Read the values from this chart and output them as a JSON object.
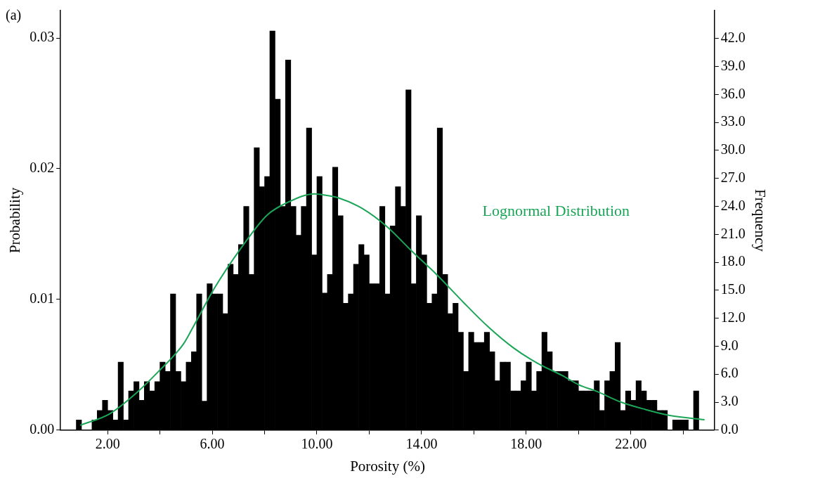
{
  "chart_data": {
    "type": "histogram",
    "xlabel": "Porosity (%)",
    "ylabel": "Probability",
    "y2label": "Frequency",
    "annotations": [
      "(a)"
    ],
    "xlim": [
      0.2,
      25.2
    ],
    "xticks": [
      {
        "value": 2,
        "label": "2.00"
      },
      {
        "value": 4,
        "label": null
      },
      {
        "value": 6,
        "label": "6.00"
      },
      {
        "value": 8,
        "label": null
      },
      {
        "value": 10,
        "label": "10.00"
      },
      {
        "value": 12,
        "label": null
      },
      {
        "value": 14,
        "label": "14.00"
      },
      {
        "value": 16,
        "label": null
      },
      {
        "value": 18,
        "label": "18.00"
      },
      {
        "value": 20,
        "label": null
      },
      {
        "value": 22,
        "label": "22.00"
      },
      {
        "value": 24,
        "label": null
      }
    ],
    "ylim": [
      0,
      0.0321
    ],
    "yticks": [
      {
        "value": 0,
        "label": "0.00"
      },
      {
        "value": 0.01,
        "label": "0.01"
      },
      {
        "value": 0.02,
        "label": "0.02"
      },
      {
        "value": 0.03,
        "label": "0.03"
      }
    ],
    "y2lim": [
      0,
      45
    ],
    "y2ticks": [
      {
        "value": 0,
        "label": "0.0"
      },
      {
        "value": 3,
        "label": "3.0"
      },
      {
        "value": 6,
        "label": "6.0"
      },
      {
        "value": 9,
        "label": "9.0"
      },
      {
        "value": 12,
        "label": "12.0"
      },
      {
        "value": 15,
        "label": "15.0"
      },
      {
        "value": 18,
        "label": "18.0"
      },
      {
        "value": 21,
        "label": "21.0"
      },
      {
        "value": 24,
        "label": "24.0"
      },
      {
        "value": 27,
        "label": "27.0"
      },
      {
        "value": 30,
        "label": "30.0"
      },
      {
        "value": 33,
        "label": "33.0"
      },
      {
        "value": 36,
        "label": "36.0"
      },
      {
        "value": 39,
        "label": "39.0"
      },
      {
        "value": 42,
        "label": "42.0"
      }
    ],
    "series": [
      {
        "axis": "y2",
        "color": "#000000",
        "bins": [
          0.8,
          1.0,
          1.2,
          1.4,
          1.6,
          1.8,
          2.0,
          2.2,
          2.4,
          2.6,
          2.8,
          3.0,
          3.2,
          3.4,
          3.6,
          3.8,
          4.0,
          4.2,
          4.4,
          4.6,
          4.8,
          5.0,
          5.2,
          5.4,
          5.6,
          5.8,
          6.0,
          6.2,
          6.4,
          6.6,
          6.8,
          7.0,
          7.2,
          7.4,
          7.6,
          7.8,
          8.0,
          8.2,
          8.4,
          8.6,
          8.8,
          9.0,
          9.2,
          9.4,
          9.6,
          9.8,
          10.0,
          10.2,
          10.4,
          10.6,
          10.8,
          11.0,
          11.2,
          11.4,
          11.6,
          11.8,
          12.0,
          12.2,
          12.4,
          12.6,
          12.8,
          13.0,
          13.2,
          13.4,
          13.6,
          13.8,
          14.0,
          14.2,
          14.4,
          14.6,
          14.8,
          15.0,
          15.2,
          15.4,
          15.6,
          15.8,
          16.0,
          16.2,
          16.4,
          16.6,
          16.8,
          17.0,
          17.2,
          17.4,
          17.6,
          17.8,
          18.0,
          18.2,
          18.4,
          18.6,
          18.8,
          19.0,
          19.2,
          19.4,
          19.6,
          19.8,
          20.0,
          20.2,
          20.4,
          20.6,
          20.8,
          21.0,
          21.2,
          21.4,
          21.6,
          21.8,
          22.0,
          22.2,
          22.4,
          22.6,
          22.8,
          23.0,
          23.2,
          23.4,
          23.6,
          23.8,
          24.0,
          24.2,
          24.4,
          24.6
        ],
        "values": [
          1.1,
          0,
          0,
          1.1,
          2.1,
          3.2,
          2.1,
          1.1,
          7.3,
          1.1,
          4.2,
          5.2,
          3.2,
          5.2,
          4.2,
          5.2,
          7.3,
          6.3,
          14.6,
          6.3,
          5.2,
          7.3,
          8.4,
          14.6,
          3.1,
          15.7,
          14.6,
          14.6,
          12.5,
          17.8,
          16.7,
          19.9,
          24.0,
          16.7,
          30.3,
          26.1,
          27.2,
          42.8,
          35.5,
          24.0,
          39.7,
          24.0,
          20.9,
          24.0,
          32.4,
          18.8,
          27.2,
          14.7,
          16.7,
          28.2,
          23.0,
          13.6,
          14.6,
          17.8,
          19.9,
          18.8,
          15.7,
          15.7,
          24.0,
          14.6,
          21.9,
          26.1,
          24.0,
          36.5,
          15.7,
          23.0,
          18.8,
          13.6,
          14.6,
          32.4,
          16.7,
          12.5,
          13.6,
          10.5,
          6.3,
          10.5,
          9.4,
          9.4,
          10.5,
          8.4,
          5.3,
          7.3,
          7.3,
          4.2,
          4.2,
          5.3,
          7.3,
          4.2,
          6.3,
          10.5,
          8.4,
          6.3,
          6.3,
          6.3,
          5.3,
          5.3,
          4.2,
          4.2,
          4.2,
          5.3,
          2.1,
          5.3,
          6.3,
          9.4,
          2.1,
          4.2,
          3.2,
          5.3,
          4.2,
          3.2,
          3.2,
          2.1,
          2.1,
          0,
          1.1,
          1.1,
          1.1,
          0,
          4.2
        ]
      },
      {
        "type": "line",
        "name": "Lognormal Distribution",
        "color": "#1aa557",
        "marker": "none",
        "x": [
          0.95,
          2.08,
          3.02,
          3.95,
          4.9,
          5.27,
          6.08,
          7.09,
          8.09,
          8.9,
          9.91,
          10.34,
          10.81,
          11.75,
          12.69,
          13.63,
          14.57,
          15.6,
          16.54,
          17.49,
          18.43,
          19.37,
          20.03,
          20.68,
          21.63,
          22.56,
          23.5,
          24.82
        ],
        "values": [
          0.00037,
          0.00125,
          0.0027,
          0.0045,
          0.0066,
          0.0079,
          0.01085,
          0.0139,
          0.01644,
          0.01744,
          0.01808,
          0.01797,
          0.01778,
          0.01694,
          0.01555,
          0.01369,
          0.01192,
          0.00978,
          0.00792,
          0.00633,
          0.00512,
          0.00419,
          0.00345,
          0.00298,
          0.00214,
          0.00158,
          0.00112,
          0.0008
        ]
      }
    ]
  }
}
